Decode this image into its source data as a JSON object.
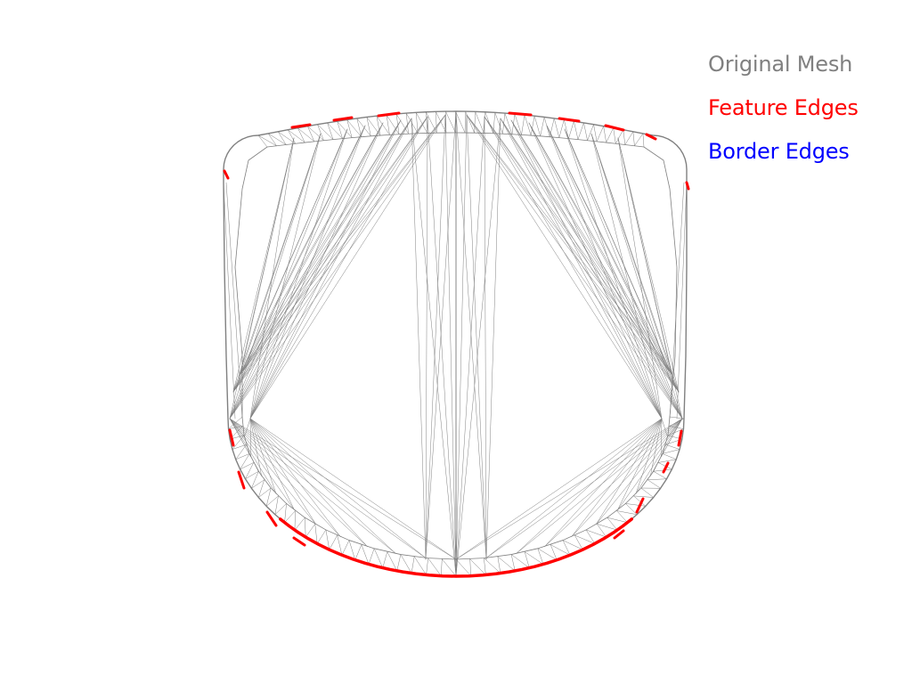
{
  "legend": {
    "entries": [
      {
        "label": "Original Mesh",
        "color": "#808080"
      },
      {
        "label": "Feature Edges",
        "color": "#ff0000"
      },
      {
        "label": "Border Edges",
        "color": "#0000ff"
      }
    ]
  },
  "colors": {
    "background": "#ffffff",
    "mesh_edges": "#808080",
    "feature_edges": "#ff0000",
    "border_edges": "#0000ff"
  }
}
